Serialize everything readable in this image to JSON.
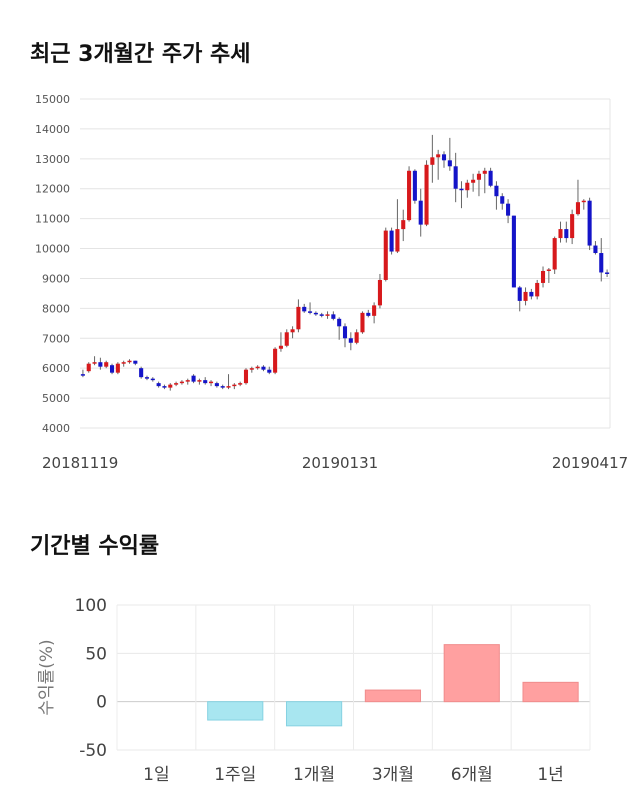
{
  "titles": {
    "price_trend": "최근 3개월간 주가 추세",
    "period_returns": "기간별 수익률"
  },
  "chart_data": [
    {
      "type": "candlestick",
      "yticks": [
        4000,
        5000,
        6000,
        7000,
        8000,
        9000,
        10000,
        11000,
        12000,
        13000,
        14000,
        15000
      ],
      "ylim": [
        4000,
        15000
      ],
      "xticks": [
        "20181119",
        "20190131",
        "20190417"
      ],
      "grid": true,
      "colors": {
        "up": "#d7191c",
        "down": "#1414c8"
      },
      "candles": [
        [
          5800,
          5950,
          5700,
          5750
        ],
        [
          5900,
          6200,
          5850,
          6150
        ],
        [
          6150,
          6400,
          6100,
          6200
        ],
        [
          6200,
          6350,
          5950,
          6050
        ],
        [
          6050,
          6250,
          6000,
          6200
        ],
        [
          6100,
          6150,
          5800,
          5850
        ],
        [
          5850,
          6200,
          5800,
          6150
        ],
        [
          6150,
          6250,
          6050,
          6200
        ],
        [
          6200,
          6300,
          6150,
          6250
        ],
        [
          6250,
          6250,
          6100,
          6150
        ],
        [
          6000,
          6050,
          5650,
          5700
        ],
        [
          5700,
          5750,
          5600,
          5650
        ],
        [
          5650,
          5700,
          5550,
          5600
        ],
        [
          5500,
          5550,
          5350,
          5400
        ],
        [
          5400,
          5450,
          5300,
          5350
        ],
        [
          5350,
          5500,
          5250,
          5450
        ],
        [
          5450,
          5550,
          5400,
          5500
        ],
        [
          5500,
          5600,
          5450,
          5550
        ],
        [
          5550,
          5650,
          5450,
          5600
        ],
        [
          5750,
          5800,
          5500,
          5550
        ],
        [
          5550,
          5650,
          5450,
          5600
        ],
        [
          5600,
          5700,
          5450,
          5500
        ],
        [
          5500,
          5600,
          5400,
          5550
        ],
        [
          5500,
          5550,
          5350,
          5400
        ],
        [
          5400,
          5450,
          5300,
          5350
        ],
        [
          5350,
          5800,
          5300,
          5400
        ],
        [
          5400,
          5500,
          5300,
          5450
        ],
        [
          5450,
          5550,
          5400,
          5500
        ],
        [
          5500,
          6000,
          5450,
          5950
        ],
        [
          5950,
          6050,
          5850,
          6000
        ],
        [
          6000,
          6100,
          5950,
          6050
        ],
        [
          6050,
          6100,
          5900,
          5950
        ],
        [
          5950,
          6050,
          5800,
          5850
        ],
        [
          5850,
          6700,
          5800,
          6650
        ],
        [
          6650,
          7200,
          6550,
          6750
        ],
        [
          6750,
          7300,
          6700,
          7200
        ],
        [
          7200,
          7400,
          7000,
          7300
        ],
        [
          7300,
          8300,
          7200,
          8050
        ],
        [
          8050,
          8150,
          7850,
          7900
        ],
        [
          7900,
          8200,
          7800,
          7850
        ],
        [
          7850,
          7900,
          7750,
          7800
        ],
        [
          7800,
          7850,
          7700,
          7750
        ],
        [
          7750,
          7900,
          7650,
          7800
        ],
        [
          7800,
          7900,
          7600,
          7650
        ],
        [
          7650,
          7700,
          6950,
          7400
        ],
        [
          7400,
          7500,
          6700,
          7000
        ],
        [
          7000,
          7200,
          6600,
          6850
        ],
        [
          6850,
          7300,
          6800,
          7200
        ],
        [
          7200,
          7900,
          7150,
          7850
        ],
        [
          7850,
          7950,
          7700,
          7750
        ],
        [
          7750,
          8200,
          7500,
          8100
        ],
        [
          8100,
          9150,
          8000,
          8950
        ],
        [
          8950,
          10700,
          8900,
          10600
        ],
        [
          10600,
          10700,
          9800,
          9900
        ],
        [
          9900,
          11650,
          9850,
          10650
        ],
        [
          10650,
          11300,
          10250,
          10950
        ],
        [
          10950,
          12750,
          10900,
          12600
        ],
        [
          12600,
          12650,
          11500,
          11600
        ],
        [
          11600,
          12000,
          10400,
          10800
        ],
        [
          10800,
          12950,
          10750,
          12800
        ],
        [
          12800,
          13800,
          12200,
          13050
        ],
        [
          13050,
          13300,
          12300,
          13150
        ],
        [
          13150,
          13250,
          12700,
          12950
        ],
        [
          12950,
          13700,
          12600,
          12750
        ],
        [
          12750,
          13200,
          11550,
          12000
        ],
        [
          12000,
          12250,
          11350,
          11950
        ],
        [
          11950,
          12300,
          11700,
          12200
        ],
        [
          12200,
          12500,
          11900,
          12300
        ],
        [
          12300,
          12600,
          11750,
          12500
        ],
        [
          12500,
          12700,
          11850,
          12600
        ],
        [
          12600,
          12700,
          12050,
          12100
        ],
        [
          12100,
          12250,
          11300,
          11750
        ],
        [
          11750,
          11850,
          11300,
          11500
        ],
        [
          11500,
          11650,
          10850,
          11100
        ],
        [
          11100,
          11100,
          8700,
          8700
        ],
        [
          8700,
          8750,
          7900,
          8250
        ],
        [
          8250,
          8700,
          8100,
          8550
        ],
        [
          8550,
          8650,
          8300,
          8400
        ],
        [
          8400,
          8950,
          8300,
          8850
        ],
        [
          8850,
          9400,
          8700,
          9250
        ],
        [
          9250,
          9350,
          8850,
          9300
        ],
        [
          9300,
          10400,
          9150,
          10350
        ],
        [
          10350,
          10900,
          10200,
          10650
        ],
        [
          10650,
          10900,
          10200,
          10350
        ],
        [
          10350,
          11300,
          10150,
          11150
        ],
        [
          11150,
          12300,
          11100,
          11550
        ],
        [
          11550,
          11650,
          11300,
          11600
        ],
        [
          11600,
          11700,
          9950,
          10100
        ],
        [
          10100,
          10250,
          9800,
          9850
        ],
        [
          9850,
          10350,
          8900,
          9200
        ],
        [
          9200,
          9300,
          9050,
          9150
        ]
      ]
    },
    {
      "type": "bar",
      "ylabel": "수익률(%)",
      "yticks": [
        100,
        50,
        0,
        -50
      ],
      "ylim": [
        -50,
        100
      ],
      "categories": [
        "1일",
        "1주일",
        "1개월",
        "3개월",
        "6개월",
        "1년"
      ],
      "values": [
        0,
        -19,
        -25,
        12,
        59,
        20
      ],
      "grid": true,
      "colors": {
        "positive": "#ffa0a0",
        "negative": "#a8e6f0"
      }
    }
  ]
}
